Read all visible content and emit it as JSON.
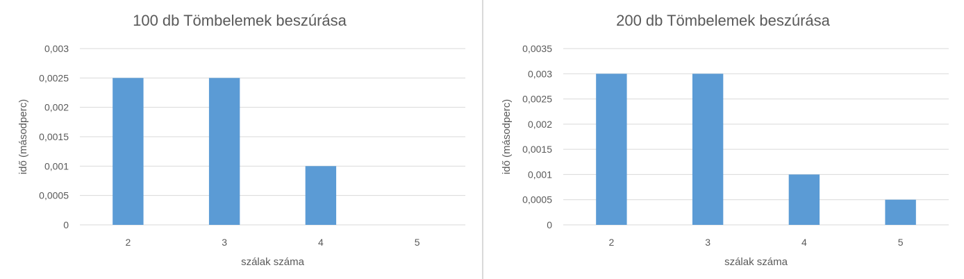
{
  "chart_data": [
    {
      "type": "bar",
      "title": "100 db Tömbelemek beszúrása",
      "xlabel": "szálak száma",
      "ylabel": "idő  (másodperc)",
      "categories": [
        "2",
        "3",
        "4",
        "5"
      ],
      "values": [
        0.0025,
        0.0025,
        0.001,
        0
      ],
      "ylim": [
        0,
        0.003
      ],
      "yticks": [
        "0",
        "0,0005",
        "0,001",
        "0,0015",
        "0,002",
        "0,0025",
        "0,003"
      ],
      "grid": true,
      "bar_color": "#5B9BD5"
    },
    {
      "type": "bar",
      "title": "200 db Tömbelemek beszúrása",
      "xlabel": "szálak száma",
      "ylabel": "idő  (másodperc)",
      "categories": [
        "2",
        "3",
        "4",
        "5"
      ],
      "values": [
        0.003,
        0.003,
        0.001,
        0.0005
      ],
      "ylim": [
        0,
        0.0035
      ],
      "yticks": [
        "0",
        "0,0005",
        "0,001",
        "0,0015",
        "0,002",
        "0,0025",
        "0,003",
        "0,0035"
      ],
      "grid": true,
      "bar_color": "#5B9BD5"
    }
  ]
}
